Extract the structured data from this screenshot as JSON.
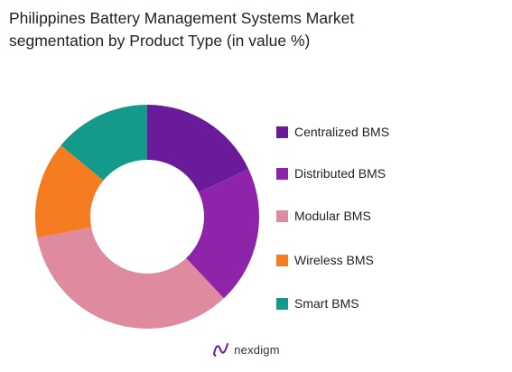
{
  "chart_data": {
    "type": "pie",
    "title": "Philippines Battery Management Systems Market segmentation by Product Type (in value %)",
    "title_lines": [
      "Philippines Battery Management Systems Market",
      "segmentation by Product Type (in value %)"
    ],
    "donut": true,
    "legend_position": "right",
    "categories": [
      "Centralized BMS",
      "Distributed BMS",
      "Modular BMS",
      "Wireless BMS",
      "Smart BMS"
    ],
    "values": [
      18,
      20,
      34,
      14,
      14
    ],
    "colors": [
      "#6a1b9a",
      "#8e24aa",
      "#e08aa0",
      "#f57c20",
      "#139a8a"
    ]
  },
  "brand": {
    "name": "nexdigm",
    "icon": "nexdigm-logo-icon"
  }
}
